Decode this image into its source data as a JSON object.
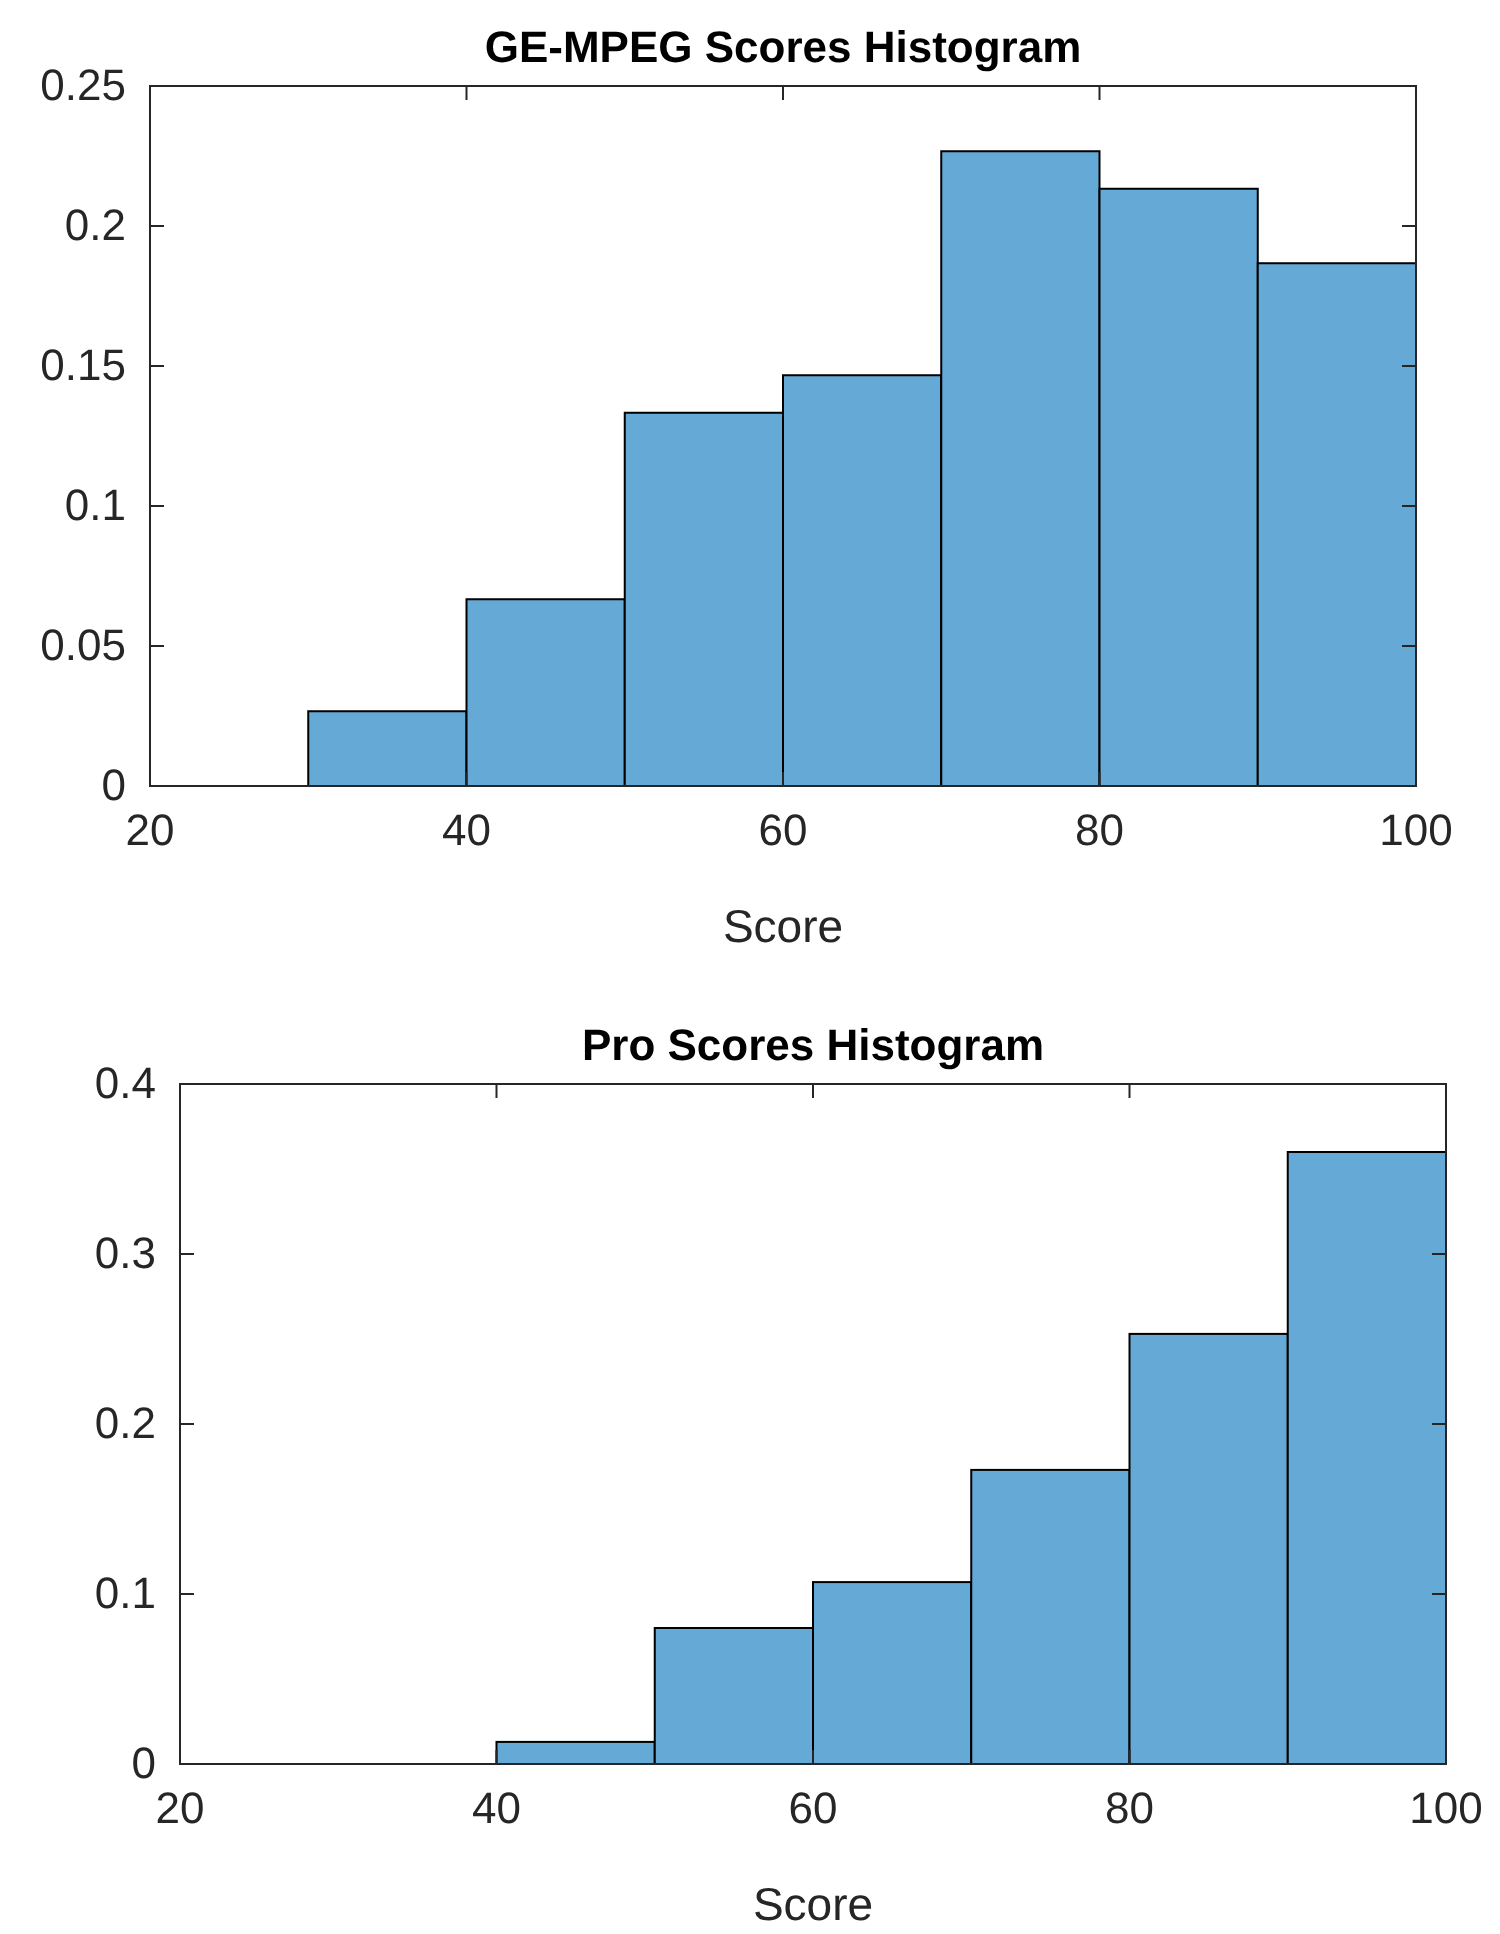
{
  "chart_data": [
    {
      "type": "histogram",
      "title": "GE-MPEG Scores Histogram",
      "xlabel": "Score",
      "bins": [
        30,
        40,
        50,
        60,
        70,
        80,
        90,
        100
      ],
      "values": [
        0.0267,
        0.0667,
        0.1333,
        0.1467,
        0.2267,
        0.2133,
        0.1867
      ],
      "color": "#65a9d7",
      "xlim": [
        20,
        100
      ],
      "xticks": [
        20,
        40,
        60,
        80,
        100
      ],
      "ylim": [
        0,
        0.25
      ],
      "yticks": [
        0,
        0.05,
        0.1,
        0.15,
        0.2,
        0.25
      ],
      "grid": false
    },
    {
      "type": "histogram",
      "title": "Pro Scores Histogram",
      "xlabel": "Score",
      "bins": [
        40,
        50,
        60,
        70,
        80,
        90,
        100
      ],
      "values": [
        0.013,
        0.08,
        0.107,
        0.173,
        0.253,
        0.36
      ],
      "color": "#65a9d7",
      "xlim": [
        20,
        100
      ],
      "xticks": [
        20,
        40,
        60,
        80,
        100
      ],
      "ylim": [
        0,
        0.4
      ],
      "yticks": [
        0,
        0.1,
        0.2,
        0.3,
        0.4
      ],
      "grid": false
    }
  ]
}
